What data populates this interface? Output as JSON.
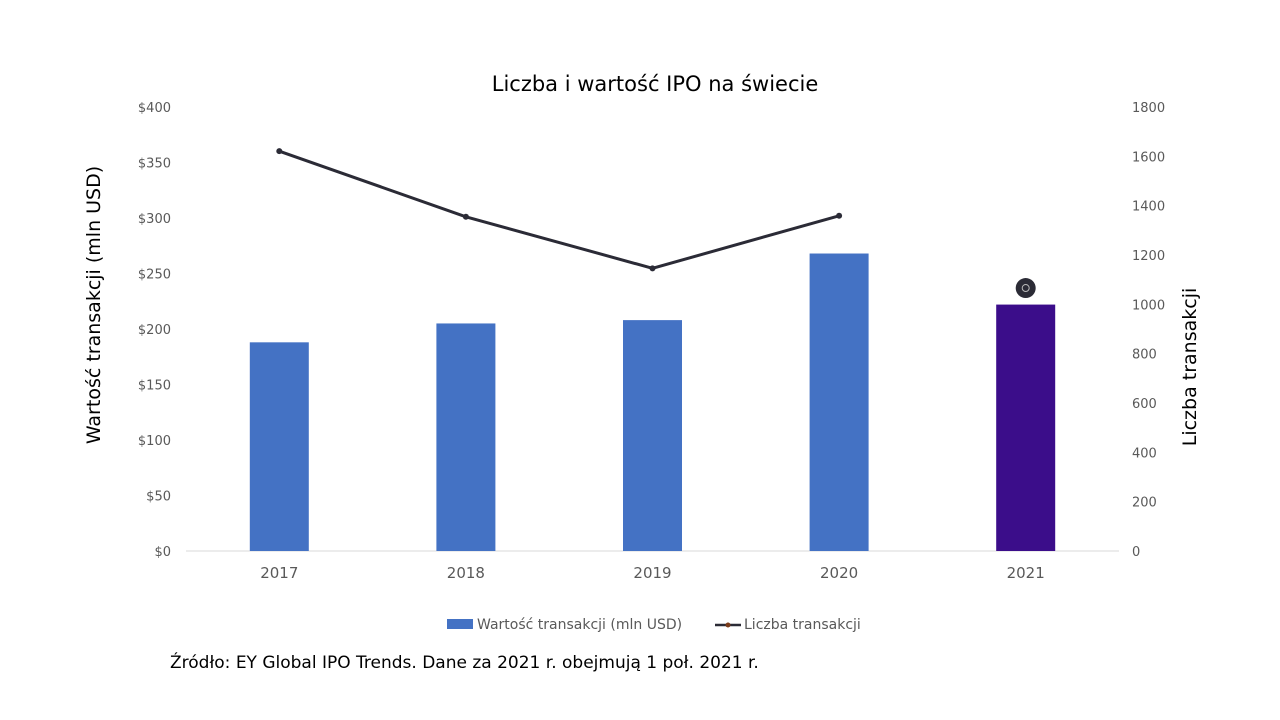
{
  "chart_data": {
    "type": "bar+line",
    "title": "Liczba i wartość IPO na świecie",
    "categories": [
      "2017",
      "2018",
      "2019",
      "2020",
      "2021"
    ],
    "series": [
      {
        "name": "Wartość transakcji (mln USD)",
        "type": "bar",
        "axis": "left",
        "values": [
          188,
          205,
          208,
          268,
          222
        ],
        "color": "#4472c4",
        "highlight_color": "#3b0d8a",
        "highlight_index": 4
      },
      {
        "name": "Liczba transakcji",
        "type": "line",
        "axis": "right",
        "values": [
          1621,
          1355,
          1146,
          1359,
          null
        ],
        "color": "#2b2b36"
      }
    ],
    "extra_marker": {
      "category": "2021",
      "value": 1066,
      "color": "#2b2b36"
    },
    "ylabel": "Wartość transakcji (mln USD)",
    "y2label": "Liczba transakcji",
    "ylim": [
      0,
      400
    ],
    "y2lim": [
      0,
      1800
    ],
    "yticks": [
      "$0",
      "$50",
      "$100",
      "$150",
      "$200",
      "$250",
      "$300",
      "$350",
      "$400"
    ],
    "y2ticks": [
      "0",
      "200",
      "400",
      "600",
      "800",
      "1000",
      "1200",
      "1400",
      "1600",
      "1800"
    ],
    "grid": false,
    "legend": "bottom"
  },
  "source": "Źródło: EY Global IPO Trends. Dane za 2021 r. obejmują 1 poł. 2021 r."
}
